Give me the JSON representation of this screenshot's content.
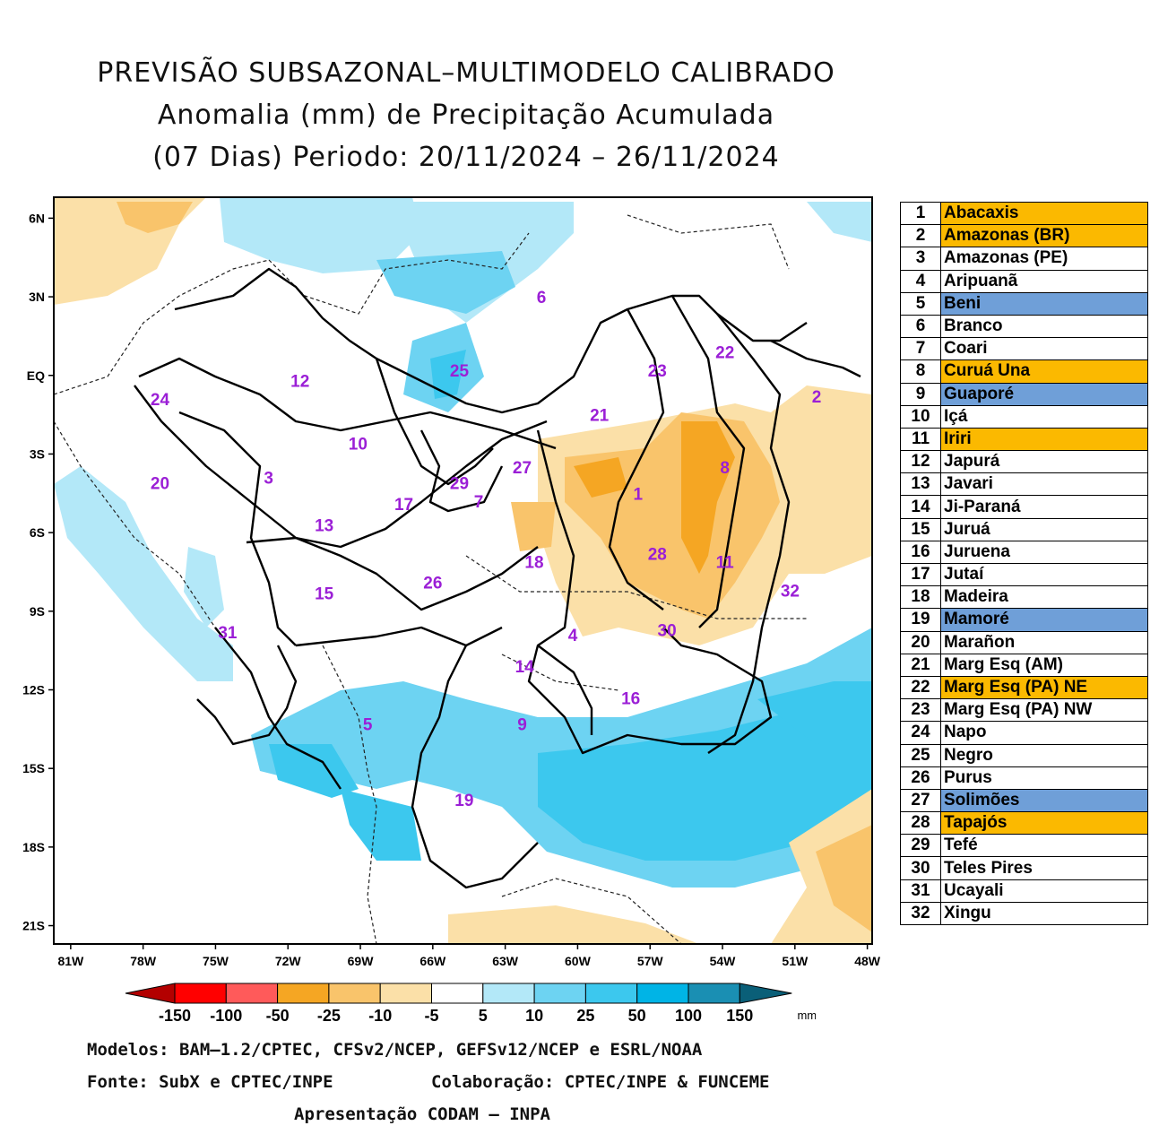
{
  "title": {
    "line1": "PREVISÃO SUBSAZONAL–MULTIMODELO CALIBRADO",
    "line2": "Anomalia (mm) de Precipitação Acumulada",
    "line3": "(07 Dias) Periodo: 20/11/2024 – 26/11/2024"
  },
  "colors": {
    "neg150": "#b30000",
    "neg100": "#ff0000",
    "neg50": "#ff5a5a",
    "neg25": "#f5a623",
    "neg10": "#f9c46b",
    "neg5": "#fbe0a8",
    "neutral": "#ffffff",
    "pos5": "#b3e8f8",
    "pos10": "#6dd3f2",
    "pos25": "#3cc8ee",
    "pos50": "#00b4e6",
    "pos100": "#1a8fb3",
    "pos150": "#0a5f78",
    "basin_outline": "#000000",
    "basin_number": "#9b1fd6",
    "highlight_orange": "#fbb900",
    "highlight_blue": "#6f9fd8"
  },
  "axes": {
    "y_ticks": [
      "6N",
      "3N",
      "EQ",
      "3S",
      "6S",
      "9S",
      "12S",
      "15S",
      "18S",
      "21S"
    ],
    "x_ticks": [
      "81W",
      "78W",
      "75W",
      "72W",
      "69W",
      "66W",
      "63W",
      "60W",
      "57W",
      "54W",
      "51W",
      "48W"
    ]
  },
  "basin_labels": [
    {
      "id": "1",
      "lon": -57.5,
      "lat": -4.5
    },
    {
      "id": "2",
      "lon": -50.1,
      "lat": -0.8
    },
    {
      "id": "3",
      "lon": -72.8,
      "lat": -3.9
    },
    {
      "id": "4",
      "lon": -60.2,
      "lat": -9.9
    },
    {
      "id": "5",
      "lon": -68.7,
      "lat": -13.3
    },
    {
      "id": "6",
      "lon": -61.5,
      "lat": 3.0
    },
    {
      "id": "7",
      "lon": -64.1,
      "lat": -4.8
    },
    {
      "id": "8",
      "lon": -53.9,
      "lat": -3.5
    },
    {
      "id": "9",
      "lon": -62.3,
      "lat": -13.3
    },
    {
      "id": "10",
      "lon": -69.1,
      "lat": -2.6
    },
    {
      "id": "11",
      "lon": -53.9,
      "lat": -7.1
    },
    {
      "id": "12",
      "lon": -71.5,
      "lat": -0.2
    },
    {
      "id": "13",
      "lon": -70.5,
      "lat": -5.7
    },
    {
      "id": "14",
      "lon": -62.2,
      "lat": -11.1
    },
    {
      "id": "15",
      "lon": -70.5,
      "lat": -8.3
    },
    {
      "id": "16",
      "lon": -57.8,
      "lat": -12.3
    },
    {
      "id": "17",
      "lon": -67.2,
      "lat": -4.9
    },
    {
      "id": "18",
      "lon": -61.8,
      "lat": -7.1
    },
    {
      "id": "19",
      "lon": -64.7,
      "lat": -16.2
    },
    {
      "id": "20",
      "lon": -77.3,
      "lat": -4.1
    },
    {
      "id": "21",
      "lon": -59.1,
      "lat": -1.5
    },
    {
      "id": "22",
      "lon": -53.9,
      "lat": 0.9
    },
    {
      "id": "23",
      "lon": -56.7,
      "lat": 0.2
    },
    {
      "id": "24",
      "lon": -77.3,
      "lat": -0.9
    },
    {
      "id": "25",
      "lon": -64.9,
      "lat": 0.2
    },
    {
      "id": "26",
      "lon": -66.0,
      "lat": -7.9
    },
    {
      "id": "27",
      "lon": -62.3,
      "lat": -3.5
    },
    {
      "id": "28",
      "lon": -56.7,
      "lat": -6.8
    },
    {
      "id": "29",
      "lon": -64.9,
      "lat": -4.1
    },
    {
      "id": "30",
      "lon": -56.3,
      "lat": -9.7
    },
    {
      "id": "31",
      "lon": -74.5,
      "lat": -9.8
    },
    {
      "id": "32",
      "lon": -51.2,
      "lat": -8.2
    }
  ],
  "legend": [
    {
      "num": "1",
      "name": "Abacaxis",
      "hl": "orange"
    },
    {
      "num": "2",
      "name": "Amazonas (BR)",
      "hl": "orange"
    },
    {
      "num": "3",
      "name": "Amazonas (PE)",
      "hl": "none"
    },
    {
      "num": "4",
      "name": "Aripuanã",
      "hl": "none"
    },
    {
      "num": "5",
      "name": "Beni",
      "hl": "blue"
    },
    {
      "num": "6",
      "name": "Branco",
      "hl": "none"
    },
    {
      "num": "7",
      "name": "Coari",
      "hl": "none"
    },
    {
      "num": "8",
      "name": "Curuá Una",
      "hl": "orange"
    },
    {
      "num": "9",
      "name": "Guaporé",
      "hl": "blue"
    },
    {
      "num": "10",
      "name": "Içá",
      "hl": "none"
    },
    {
      "num": "11",
      "name": "Iriri",
      "hl": "orange"
    },
    {
      "num": "12",
      "name": "Japurá",
      "hl": "none"
    },
    {
      "num": "13",
      "name": "Javari",
      "hl": "none"
    },
    {
      "num": "14",
      "name": "Ji-Paraná",
      "hl": "none"
    },
    {
      "num": "15",
      "name": "Juruá",
      "hl": "none"
    },
    {
      "num": "16",
      "name": "Juruena",
      "hl": "none"
    },
    {
      "num": "17",
      "name": "Jutaí",
      "hl": "none"
    },
    {
      "num": "18",
      "name": "Madeira",
      "hl": "none"
    },
    {
      "num": "19",
      "name": "Mamoré",
      "hl": "blue"
    },
    {
      "num": "20",
      "name": "Marañon",
      "hl": "none"
    },
    {
      "num": "21",
      "name": "Marg Esq (AM)",
      "hl": "none"
    },
    {
      "num": "22",
      "name": "Marg Esq (PA) NE",
      "hl": "orange"
    },
    {
      "num": "23",
      "name": "Marg Esq (PA) NW",
      "hl": "none"
    },
    {
      "num": "24",
      "name": "Napo",
      "hl": "none"
    },
    {
      "num": "25",
      "name": "Negro",
      "hl": "none"
    },
    {
      "num": "26",
      "name": "Purus",
      "hl": "none"
    },
    {
      "num": "27",
      "name": "Solimões",
      "hl": "blue"
    },
    {
      "num": "28",
      "name": "Tapajós",
      "hl": "orange"
    },
    {
      "num": "29",
      "name": "Tefé",
      "hl": "none"
    },
    {
      "num": "30",
      "name": "Teles Pires",
      "hl": "none"
    },
    {
      "num": "31",
      "name": "Ucayali",
      "hl": "none"
    },
    {
      "num": "32",
      "name": "Xingu",
      "hl": "none"
    }
  ],
  "colorbar": {
    "labels": [
      "-150",
      "-100",
      "-50",
      "-25",
      "-10",
      "-5",
      "5",
      "10",
      "25",
      "50",
      "100",
      "150"
    ],
    "unit": "mm"
  },
  "footer": {
    "models": "Modelos: BAM–1.2/CPTEC, CFSv2/NCEP, GEFSv12/NCEP e ESRL/NOAA",
    "source": "Fonte: SubX e CPTEC/INPE",
    "collab": "Colaboração: CPTEC/INPE & FUNCEME",
    "presentation": "Apresentação CODAM – INPA"
  }
}
